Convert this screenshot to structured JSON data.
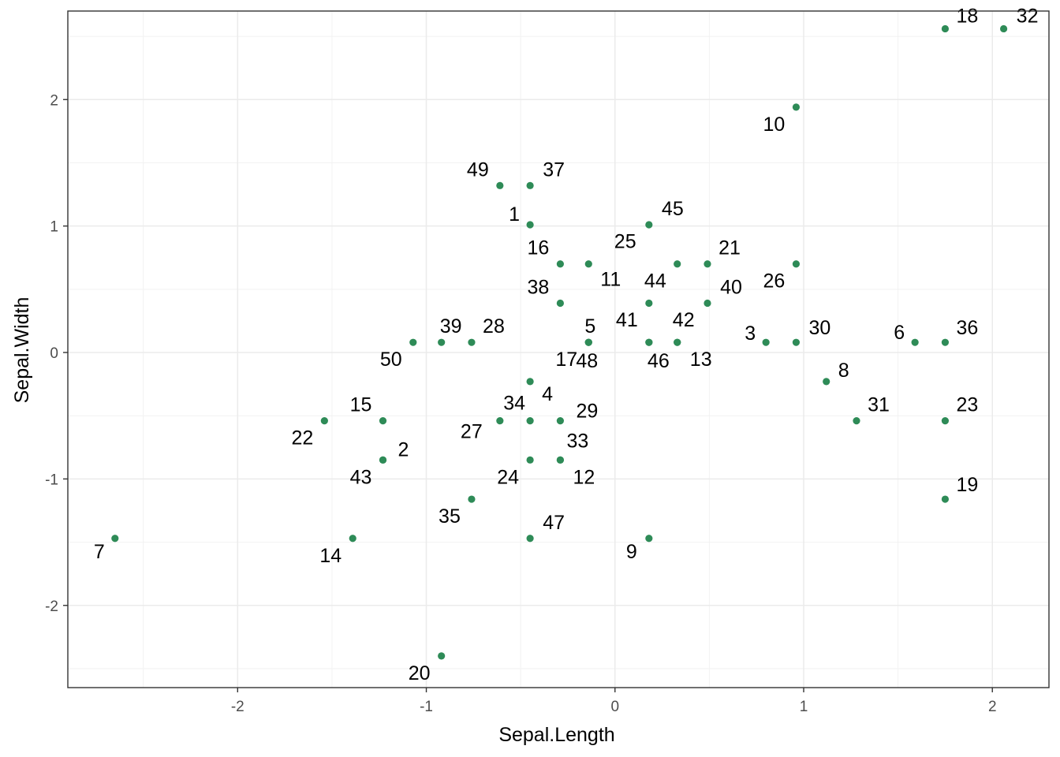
{
  "chart_data": {
    "type": "scatter",
    "title": "",
    "xlabel": "Sepal.Length",
    "ylabel": "Sepal.Width",
    "xlim": [
      -2.9,
      2.3
    ],
    "ylim": [
      -2.65,
      2.7
    ],
    "x_ticks": [
      -2,
      -1,
      0,
      1,
      2
    ],
    "y_ticks": [
      -2,
      -1,
      0,
      1,
      2
    ],
    "x_tick_labels": [
      "-2",
      "-1",
      "0",
      "1",
      "2"
    ],
    "y_tick_labels": [
      "-2",
      "-1",
      "0",
      "1",
      "2"
    ],
    "grid": true,
    "point_color": "#2e8b57",
    "points": [
      {
        "label": "1",
        "x": -0.45,
        "y": 1.01
      },
      {
        "label": "2",
        "x": -1.23,
        "y": -0.85
      },
      {
        "label": "3",
        "x": 0.8,
        "y": 0.08
      },
      {
        "label": "4",
        "x": -0.45,
        "y": -0.23
      },
      {
        "label": "5",
        "x": -0.14,
        "y": 0.08
      },
      {
        "label": "6",
        "x": 1.59,
        "y": 0.08
      },
      {
        "label": "7",
        "x": -2.65,
        "y": -1.47
      },
      {
        "label": "8",
        "x": 1.12,
        "y": -0.23
      },
      {
        "label": "9",
        "x": 0.18,
        "y": -1.47
      },
      {
        "label": "10",
        "x": 0.96,
        "y": 1.94
      },
      {
        "label": "11",
        "x": -0.14,
        "y": 0.7
      },
      {
        "label": "12",
        "x": -0.29,
        "y": -0.85
      },
      {
        "label": "13",
        "x": 0.33,
        "y": 0.08
      },
      {
        "label": "14",
        "x": -1.39,
        "y": -1.47
      },
      {
        "label": "15",
        "x": -1.23,
        "y": -0.54
      },
      {
        "label": "16",
        "x": -0.29,
        "y": 0.7
      },
      {
        "label": "17",
        "x": -0.14,
        "y": 0.08
      },
      {
        "label": "18",
        "x": 1.75,
        "y": 2.56
      },
      {
        "label": "19",
        "x": 1.75,
        "y": -1.16
      },
      {
        "label": "20",
        "x": -0.92,
        "y": -2.4
      },
      {
        "label": "21",
        "x": 0.49,
        "y": 0.7
      },
      {
        "label": "22",
        "x": -1.54,
        "y": -0.54
      },
      {
        "label": "23",
        "x": 1.75,
        "y": -0.54
      },
      {
        "label": "24",
        "x": -0.45,
        "y": -0.85
      },
      {
        "label": "25",
        "x": 0.33,
        "y": 0.7
      },
      {
        "label": "26",
        "x": 0.96,
        "y": 0.7
      },
      {
        "label": "27",
        "x": -0.61,
        "y": -0.54
      },
      {
        "label": "28",
        "x": -0.76,
        "y": 0.08
      },
      {
        "label": "29",
        "x": -0.29,
        "y": -0.54
      },
      {
        "label": "30",
        "x": 0.96,
        "y": 0.08
      },
      {
        "label": "31",
        "x": 1.28,
        "y": -0.54
      },
      {
        "label": "32",
        "x": 2.06,
        "y": 2.56
      },
      {
        "label": "33",
        "x": -0.29,
        "y": -0.85
      },
      {
        "label": "34",
        "x": -0.45,
        "y": -0.54
      },
      {
        "label": "35",
        "x": -0.76,
        "y": -1.16
      },
      {
        "label": "36",
        "x": 1.75,
        "y": 0.08
      },
      {
        "label": "37",
        "x": -0.45,
        "y": 1.32
      },
      {
        "label": "38",
        "x": -0.29,
        "y": 0.39
      },
      {
        "label": "39",
        "x": -0.92,
        "y": 0.08
      },
      {
        "label": "40",
        "x": 0.49,
        "y": 0.39
      },
      {
        "label": "41",
        "x": 0.18,
        "y": 0.08
      },
      {
        "label": "42",
        "x": 0.33,
        "y": 0.08
      },
      {
        "label": "43",
        "x": -1.23,
        "y": -0.85
      },
      {
        "label": "44",
        "x": 0.18,
        "y": 0.39
      },
      {
        "label": "45",
        "x": 0.18,
        "y": 1.01
      },
      {
        "label": "46",
        "x": 0.18,
        "y": 0.08
      },
      {
        "label": "47",
        "x": -0.45,
        "y": -1.47
      },
      {
        "label": "48",
        "x": -0.14,
        "y": 0.08
      },
      {
        "label": "49",
        "x": -0.61,
        "y": 1.32
      },
      {
        "label": "50",
        "x": -1.07,
        "y": 0.08
      }
    ]
  }
}
